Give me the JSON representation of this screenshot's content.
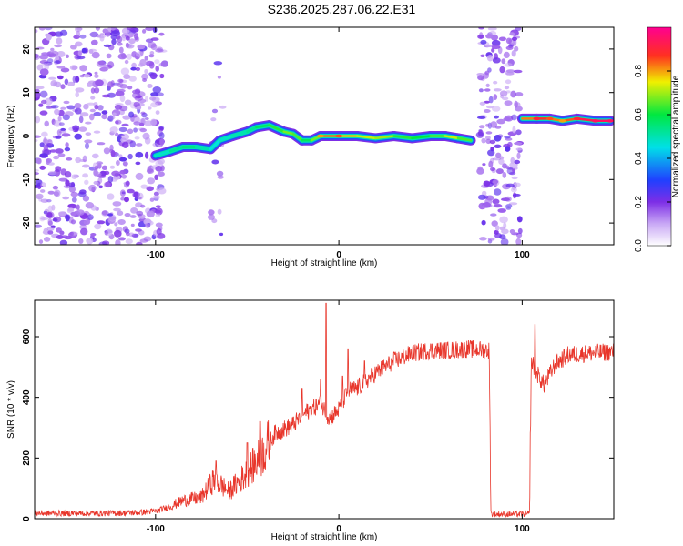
{
  "title": "S236.2025.287.06.22.E31",
  "chart_data": [
    {
      "type": "heatmap",
      "xlabel": "Height of straight line (km)",
      "ylabel": "Frequency (Hz)",
      "xlim": [
        -166,
        150
      ],
      "ylim": [
        -25,
        25
      ],
      "xticks": [
        -100,
        0,
        100
      ],
      "yticks": [
        -20,
        -10,
        0,
        10,
        20
      ],
      "colorbar": {
        "label": "Normalized spectral amplitude",
        "range": [
          0,
          1
        ],
        "ticks": [
          0.0,
          0.2,
          0.4,
          0.6,
          0.8
        ]
      },
      "ridge": [
        {
          "x": -100,
          "y": -4.5,
          "a": 0.45
        },
        {
          "x": -92,
          "y": -3.5,
          "a": 0.5
        },
        {
          "x": -85,
          "y": -2.5,
          "a": 0.55
        },
        {
          "x": -78,
          "y": -2.5,
          "a": 0.55
        },
        {
          "x": -70,
          "y": -3,
          "a": 0.45
        },
        {
          "x": -65,
          "y": -1,
          "a": 0.45
        },
        {
          "x": -58,
          "y": 0,
          "a": 0.5
        },
        {
          "x": -50,
          "y": 1,
          "a": 0.5
        },
        {
          "x": -45,
          "y": 2,
          "a": 0.55
        },
        {
          "x": -38,
          "y": 2.5,
          "a": 0.6
        },
        {
          "x": -30,
          "y": 1,
          "a": 0.65
        },
        {
          "x": -25,
          "y": 0.5,
          "a": 0.7
        },
        {
          "x": -20,
          "y": -1,
          "a": 0.6
        },
        {
          "x": -15,
          "y": -1,
          "a": 0.55
        },
        {
          "x": -10,
          "y": 0,
          "a": 0.8
        },
        {
          "x": 0,
          "y": 0,
          "a": 0.85
        },
        {
          "x": 10,
          "y": 0,
          "a": 0.7
        },
        {
          "x": 20,
          "y": -0.5,
          "a": 0.75
        },
        {
          "x": 30,
          "y": 0,
          "a": 0.65
        },
        {
          "x": 40,
          "y": -0.5,
          "a": 0.6
        },
        {
          "x": 50,
          "y": 0,
          "a": 0.6
        },
        {
          "x": 58,
          "y": 0,
          "a": 0.7
        },
        {
          "x": 65,
          "y": -0.5,
          "a": 0.75
        },
        {
          "x": 72,
          "y": -1,
          "a": 0.55
        },
        {
          "x": 100,
          "y": 4,
          "a": 0.75
        },
        {
          "x": 108,
          "y": 4,
          "a": 0.9
        },
        {
          "x": 115,
          "y": 4,
          "a": 0.85
        },
        {
          "x": 122,
          "y": 3.5,
          "a": 0.8
        },
        {
          "x": 130,
          "y": 4,
          "a": 0.9
        },
        {
          "x": 140,
          "y": 3.5,
          "a": 0.95
        },
        {
          "x": 148,
          "y": 3.5,
          "a": 0.95
        }
      ],
      "noise_regions": [
        {
          "x": [
            -166,
            -95
          ],
          "density": 1.0
        },
        {
          "x": [
            -70,
            -63
          ],
          "density": 0.25
        },
        {
          "x": [
            77,
            99
          ],
          "density": 1.0
        }
      ]
    },
    {
      "type": "line",
      "xlabel": "Height of straight line (km)",
      "ylabel": "SNR (10 * v/v)",
      "xlim": [
        -166,
        150
      ],
      "ylim": [
        0,
        720
      ],
      "xticks": [
        -100,
        0,
        100
      ],
      "yticks": [
        0,
        200,
        400,
        600
      ],
      "color": "#e8362b",
      "profile": [
        [
          -166,
          18
        ],
        [
          -130,
          18
        ],
        [
          -110,
          20
        ],
        [
          -100,
          25
        ],
        [
          -92,
          40
        ],
        [
          -85,
          60
        ],
        [
          -75,
          70
        ],
        [
          -68,
          130
        ],
        [
          -60,
          90
        ],
        [
          -50,
          150
        ],
        [
          -42,
          210
        ],
        [
          -35,
          280
        ],
        [
          -25,
          310
        ],
        [
          -18,
          350
        ],
        [
          -10,
          380
        ],
        [
          -5,
          330
        ],
        [
          0,
          360
        ],
        [
          5,
          420
        ],
        [
          10,
          430
        ],
        [
          20,
          480
        ],
        [
          30,
          520
        ],
        [
          40,
          545
        ],
        [
          50,
          555
        ],
        [
          60,
          555
        ],
        [
          70,
          560
        ],
        [
          82,
          555
        ],
        [
          83,
          15
        ],
        [
          104,
          15
        ],
        [
          105,
          520
        ],
        [
          108,
          480
        ],
        [
          112,
          440
        ],
        [
          118,
          510
        ],
        [
          125,
          540
        ],
        [
          135,
          545
        ],
        [
          150,
          550
        ]
      ],
      "spikes": [
        [
          -67,
          190
        ],
        [
          -50,
          250
        ],
        [
          -43,
          320
        ],
        [
          -20,
          430
        ],
        [
          -10,
          460
        ],
        [
          -7,
          710
        ],
        [
          2,
          470
        ],
        [
          5,
          560
        ],
        [
          14,
          520
        ],
        [
          107,
          640
        ]
      ]
    }
  ]
}
